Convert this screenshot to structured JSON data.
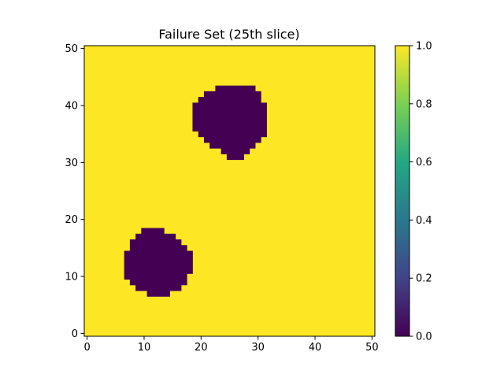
{
  "chart_data": {
    "type": "heatmap",
    "title": "Failure Set (25th slice)",
    "xlabel": "",
    "ylabel": "",
    "xlim": [
      -0.5,
      50.5
    ],
    "ylim": [
      -0.5,
      50.5
    ],
    "xticks": [
      0,
      10,
      20,
      30,
      40,
      50
    ],
    "yticks": [
      0,
      10,
      20,
      30,
      40,
      50
    ],
    "origin": "lower",
    "grid": false,
    "grid_size": [
      51,
      51
    ],
    "background_value": 1.0,
    "regions": [
      {
        "value": 0.0,
        "rows": [
          [
            7,
            11,
            14
          ],
          [
            8,
            9,
            16
          ],
          [
            9,
            8,
            17
          ],
          [
            10,
            7,
            17
          ],
          [
            11,
            7,
            18
          ],
          [
            12,
            7,
            18
          ],
          [
            13,
            7,
            18
          ],
          [
            14,
            7,
            18
          ],
          [
            15,
            8,
            17
          ],
          [
            16,
            8,
            16
          ],
          [
            17,
            9,
            15
          ],
          [
            18,
            10,
            13
          ]
        ]
      },
      {
        "value": 0.0,
        "rows": [
          [
            31,
            25,
            27
          ],
          [
            32,
            24,
            28
          ],
          [
            33,
            22,
            29
          ],
          [
            34,
            21,
            30
          ],
          [
            35,
            20,
            31
          ],
          [
            36,
            19,
            31
          ],
          [
            37,
            19,
            31
          ],
          [
            38,
            19,
            31
          ],
          [
            39,
            19,
            31
          ],
          [
            40,
            19,
            31
          ],
          [
            41,
            20,
            30
          ],
          [
            42,
            21,
            30
          ],
          [
            43,
            23,
            29
          ]
        ]
      }
    ],
    "colorbar": {
      "colormap": "viridis",
      "vmin": 0.0,
      "vmax": 1.0,
      "ticks": [
        "0.0",
        "0.2",
        "0.4",
        "0.6",
        "0.8",
        "1.0"
      ],
      "stops": [
        "#440154",
        "#414487",
        "#2a788e",
        "#22a884",
        "#7ad151",
        "#fde725"
      ]
    }
  }
}
